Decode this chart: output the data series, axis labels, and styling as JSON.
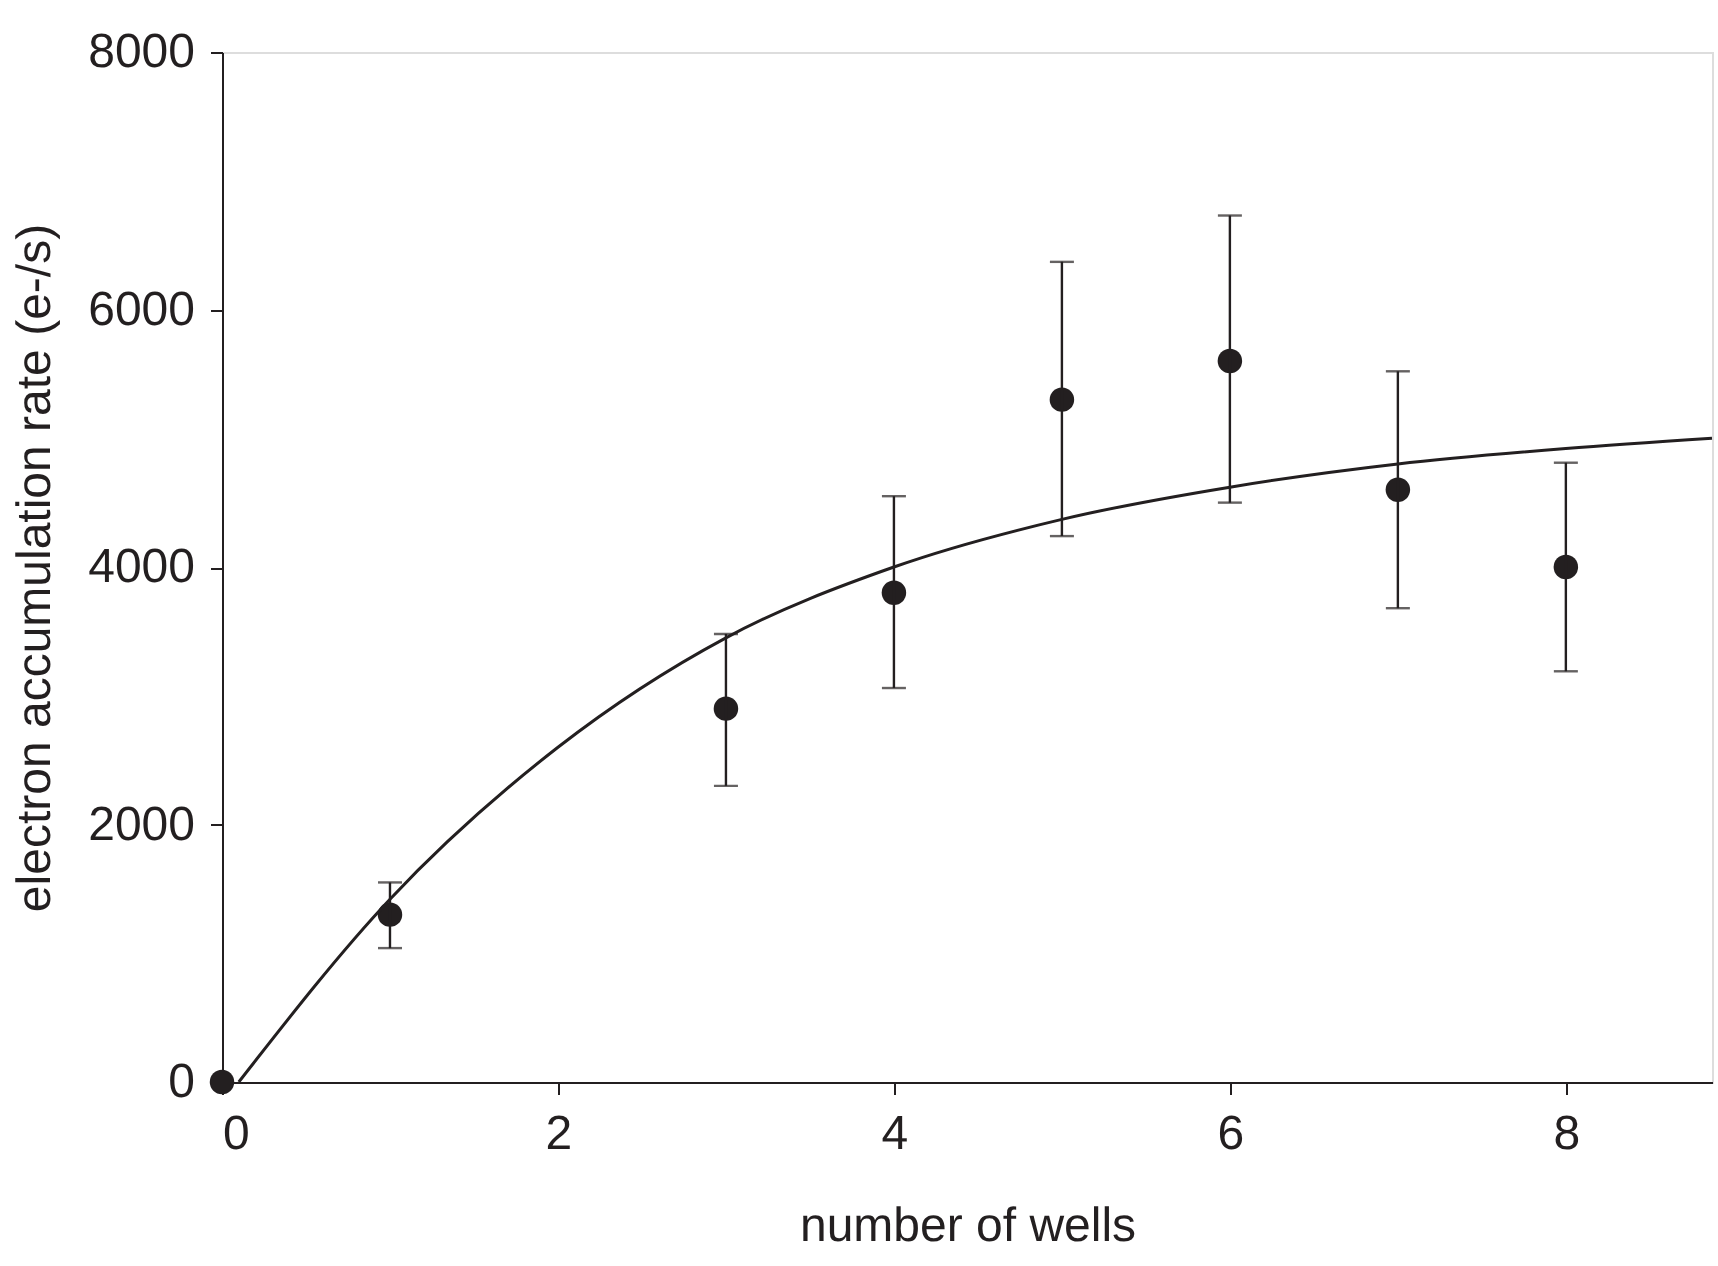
{
  "chart_data": {
    "type": "scatter",
    "xlabel": "number of wells",
    "ylabel": "electron accumulation rate (e-/s)",
    "xlim": [
      0,
      8.87
    ],
    "xticks": [
      0,
      2,
      4,
      6,
      8
    ],
    "ylim": [
      0,
      8000
    ],
    "yticks": [
      0,
      2000,
      4000,
      6000,
      8000
    ],
    "grid": false,
    "series": [
      {
        "color": "#231f20",
        "marker": "circle",
        "x": [
          0,
          1,
          3,
          4,
          5,
          6,
          7,
          8
        ],
        "values": [
          0,
          1300,
          2900,
          3800,
          5300,
          5600,
          4600,
          4000
        ],
        "errors": [
          null,
          [
            1040,
            1550
          ],
          [
            2300,
            3480
          ],
          [
            3060,
            4550
          ],
          [
            4240,
            6370
          ],
          [
            4500,
            6730
          ],
          [
            3680,
            5520
          ],
          [
            3190,
            4810
          ]
        ]
      },
      {
        "type": "line",
        "marker": "none",
        "color": "#231f20",
        "x": [
          0.1,
          1,
          2,
          3,
          4,
          5,
          6,
          7,
          8,
          8.87
        ],
        "values": [
          0,
          1420,
          2600,
          3450,
          4000,
          4370,
          4620,
          4800,
          4920,
          5000
        ]
      }
    ]
  }
}
